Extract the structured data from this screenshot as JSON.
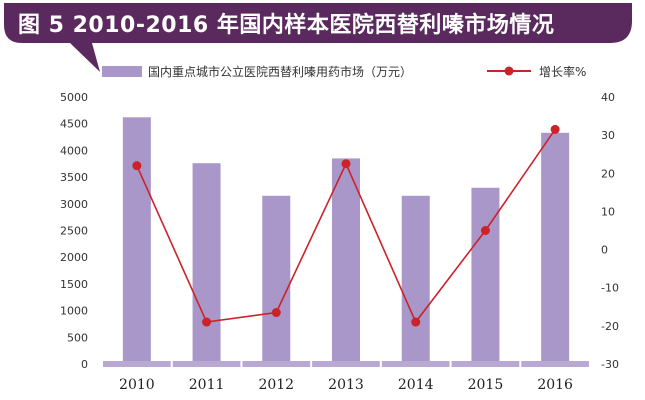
{
  "title": "图 5  2010-2016 年国内样本医院西替利嗪市场情况",
  "colors": {
    "banner": "#5a2a5e",
    "bar": "#a897c8",
    "line": "#cc2229",
    "axis_band": "#b9a9d2",
    "text": "#333333"
  },
  "legend": {
    "position": "top",
    "bar_label": "国内重点城市公立医院西替利嗪用药市场（万元）",
    "line_label": "增长率%"
  },
  "chart_data": {
    "type": "bar",
    "categories": [
      "2010",
      "2011",
      "2012",
      "2013",
      "2014",
      "2015",
      "2016"
    ],
    "series": [
      {
        "name": "国内重点城市公立医院西替利嗪用药市场（万元）",
        "type": "bar",
        "axis": "left",
        "values": [
          4620,
          3760,
          3150,
          3850,
          3150,
          3300,
          4330
        ]
      },
      {
        "name": "增长率%",
        "type": "line",
        "axis": "right",
        "values": [
          22,
          -19,
          -16.5,
          22.5,
          -19,
          5,
          31.5
        ]
      }
    ],
    "y_left": {
      "min": 0,
      "max": 5000,
      "ticks": [
        "0",
        "500",
        "1000",
        "1500",
        "2000",
        "2500",
        "3000",
        "3500",
        "4000",
        "4500",
        "5000"
      ]
    },
    "y_right": {
      "min": -30,
      "max": 40,
      "ticks": [
        "-30",
        "-20",
        "-10",
        "0",
        "10",
        "20",
        "30",
        "40"
      ]
    },
    "grid": false
  }
}
